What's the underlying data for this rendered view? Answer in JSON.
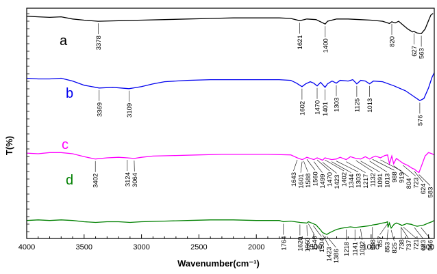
{
  "chart_data": {
    "type": "line",
    "xlabel": "Wavenumber(cm⁻¹)",
    "ylabel": "T(%)",
    "xlim": [
      4000,
      450
    ],
    "x_reversed": true,
    "grid": false,
    "yticks_labeled": false,
    "x_ticks": [
      "4000",
      "3500",
      "3000",
      "2500",
      "2000",
      "1500",
      "1000",
      "500"
    ],
    "series": [
      {
        "name": "a",
        "color": "#000000",
        "points": [
          [
            4000,
            93
          ],
          [
            3900,
            92
          ],
          [
            3800,
            91
          ],
          [
            3700,
            92
          ],
          [
            3600,
            88
          ],
          [
            3500,
            86
          ],
          [
            3378,
            84
          ],
          [
            3200,
            85
          ],
          [
            3000,
            86
          ],
          [
            2800,
            87
          ],
          [
            2600,
            88
          ],
          [
            2400,
            89
          ],
          [
            2200,
            90
          ],
          [
            2000,
            90
          ],
          [
            1800,
            90
          ],
          [
            1700,
            89
          ],
          [
            1621,
            85
          ],
          [
            1560,
            88
          ],
          [
            1480,
            87
          ],
          [
            1400,
            79
          ],
          [
            1380,
            84
          ],
          [
            1300,
            88
          ],
          [
            1200,
            88
          ],
          [
            1100,
            87
          ],
          [
            1000,
            86
          ],
          [
            900,
            84
          ],
          [
            840,
            80
          ],
          [
            820,
            83
          ],
          [
            790,
            81
          ],
          [
            760,
            84
          ],
          [
            720,
            77
          ],
          [
            680,
            70
          ],
          [
            640,
            65
          ],
          [
            627,
            66
          ],
          [
            600,
            63
          ],
          [
            563,
            62
          ],
          [
            530,
            70
          ],
          [
            500,
            85
          ],
          [
            480,
            95
          ],
          [
            460,
            98
          ]
        ],
        "peaks": [
          "3378",
          "1621",
          "1400",
          "820",
          "627",
          "563"
        ]
      },
      {
        "name": "b",
        "color": "#0000ee",
        "points": [
          [
            4000,
            74
          ],
          [
            3900,
            73
          ],
          [
            3800,
            73
          ],
          [
            3700,
            74
          ],
          [
            3600,
            70
          ],
          [
            3500,
            64
          ],
          [
            3400,
            61
          ],
          [
            3369,
            60
          ],
          [
            3250,
            61
          ],
          [
            3109,
            59
          ],
          [
            3000,
            62
          ],
          [
            2900,
            66
          ],
          [
            2800,
            69
          ],
          [
            2600,
            71
          ],
          [
            2400,
            72
          ],
          [
            2200,
            72
          ],
          [
            2000,
            72
          ],
          [
            1800,
            72
          ],
          [
            1700,
            71
          ],
          [
            1650,
            67
          ],
          [
            1602,
            62
          ],
          [
            1570,
            66
          ],
          [
            1530,
            69
          ],
          [
            1500,
            67
          ],
          [
            1470,
            63
          ],
          [
            1440,
            68
          ],
          [
            1401,
            61
          ],
          [
            1380,
            66
          ],
          [
            1340,
            70
          ],
          [
            1303,
            67
          ],
          [
            1270,
            71
          ],
          [
            1200,
            70
          ],
          [
            1160,
            72
          ],
          [
            1125,
            66
          ],
          [
            1090,
            71
          ],
          [
            1050,
            70
          ],
          [
            1013,
            66
          ],
          [
            980,
            70
          ],
          [
            900,
            69
          ],
          [
            850,
            66
          ],
          [
            800,
            63
          ],
          [
            700,
            56
          ],
          [
            620,
            47
          ],
          [
            576,
            42
          ],
          [
            540,
            45
          ],
          [
            500,
            60
          ],
          [
            470,
            75
          ],
          [
            450,
            82
          ]
        ],
        "peaks": [
          "3369",
          "3109",
          "1602",
          "1470",
          "1401",
          "1303",
          "1125",
          "1013",
          "576"
        ]
      },
      {
        "name": "c",
        "color": "#ff00ff",
        "points": [
          [
            4000,
            51
          ],
          [
            3900,
            50
          ],
          [
            3800,
            52
          ],
          [
            3700,
            52
          ],
          [
            3600,
            50
          ],
          [
            3500,
            45
          ],
          [
            3402,
            41
          ],
          [
            3300,
            43
          ],
          [
            3200,
            44
          ],
          [
            3124,
            43
          ],
          [
            3064,
            42
          ],
          [
            3000,
            44
          ],
          [
            2900,
            46
          ],
          [
            2700,
            47
          ],
          [
            2500,
            48
          ],
          [
            2300,
            49
          ],
          [
            2100,
            49
          ],
          [
            1900,
            49
          ],
          [
            1700,
            48
          ],
          [
            1643,
            43
          ],
          [
            1601,
            40
          ],
          [
            1588,
            41
          ],
          [
            1560,
            44
          ],
          [
            1499,
            40
          ],
          [
            1470,
            43
          ],
          [
            1423,
            39
          ],
          [
            1402,
            43
          ],
          [
            1344,
            40
          ],
          [
            1303,
            41
          ],
          [
            1270,
            44
          ],
          [
            1217,
            40
          ],
          [
            1180,
            45
          ],
          [
            1132,
            42
          ],
          [
            1091,
            41
          ],
          [
            1050,
            45
          ],
          [
            1013,
            41
          ],
          [
            988,
            44
          ],
          [
            960,
            46
          ],
          [
            919,
            43
          ],
          [
            880,
            47
          ],
          [
            857,
            48
          ],
          [
            840,
            33
          ],
          [
            820,
            46
          ],
          [
            804,
            33
          ],
          [
            780,
            42
          ],
          [
            738,
            36
          ],
          [
            723,
            34
          ],
          [
            680,
            30
          ],
          [
            640,
            25
          ],
          [
            624,
            24
          ],
          [
            600,
            20
          ],
          [
            583,
            18
          ],
          [
            560,
            30
          ],
          [
            530,
            46
          ],
          [
            500,
            52
          ],
          [
            470,
            50
          ],
          [
            450,
            48
          ]
        ],
        "peaks": [
          "3402",
          "3124",
          "3064",
          "1643",
          "1601",
          "1588",
          "1560",
          "1499",
          "1470",
          "1423",
          "1402",
          "1344",
          "1303",
          "1217",
          "1132",
          "1091",
          "1013",
          "988",
          "919",
          "804",
          "723",
          "624",
          "583"
        ]
      },
      {
        "name": "d",
        "color": "#008000",
        "points": [
          [
            4000,
            24
          ],
          [
            3900,
            25
          ],
          [
            3800,
            24
          ],
          [
            3700,
            25
          ],
          [
            3600,
            24
          ],
          [
            3500,
            22
          ],
          [
            3400,
            21
          ],
          [
            3300,
            22
          ],
          [
            3200,
            22
          ],
          [
            3100,
            21
          ],
          [
            3000,
            22
          ],
          [
            2800,
            23
          ],
          [
            2600,
            24
          ],
          [
            2400,
            25
          ],
          [
            2200,
            25
          ],
          [
            2000,
            24
          ],
          [
            1800,
            24
          ],
          [
            1764,
            22
          ],
          [
            1700,
            23
          ],
          [
            1620,
            21
          ],
          [
            1560,
            20
          ],
          [
            1546,
            22
          ],
          [
            1504,
            19
          ],
          [
            1480,
            17
          ],
          [
            1440,
            9
          ],
          [
            1423,
            5
          ],
          [
            1400,
            3
          ],
          [
            1386,
            2
          ],
          [
            1360,
            5
          ],
          [
            1300,
            10
          ],
          [
            1250,
            12
          ],
          [
            1218,
            13
          ],
          [
            1180,
            14
          ],
          [
            1141,
            13
          ],
          [
            1092,
            14
          ],
          [
            1050,
            15
          ],
          [
            1000,
            16
          ],
          [
            988,
            17
          ],
          [
            950,
            18
          ],
          [
            900,
            20
          ],
          [
            870,
            21
          ],
          [
            857,
            22
          ],
          [
            853,
            13
          ],
          [
            840,
            20
          ],
          [
            825,
            12
          ],
          [
            800,
            18
          ],
          [
            780,
            20
          ],
          [
            738,
            17
          ],
          [
            737,
            16
          ],
          [
            721,
            17
          ],
          [
            690,
            19
          ],
          [
            650,
            18
          ],
          [
            623,
            16
          ],
          [
            600,
            15
          ],
          [
            566,
            16
          ],
          [
            540,
            17
          ],
          [
            500,
            20
          ],
          [
            470,
            22
          ],
          [
            450,
            24
          ]
        ],
        "peaks": [
          "1764",
          "1620",
          "1560",
          "1546",
          "1504",
          "1423",
          "1386",
          "1218",
          "1141",
          "1092",
          "988",
          "857",
          "853",
          "825",
          "738",
          "737",
          "721",
          "623",
          "566"
        ]
      }
    ]
  }
}
